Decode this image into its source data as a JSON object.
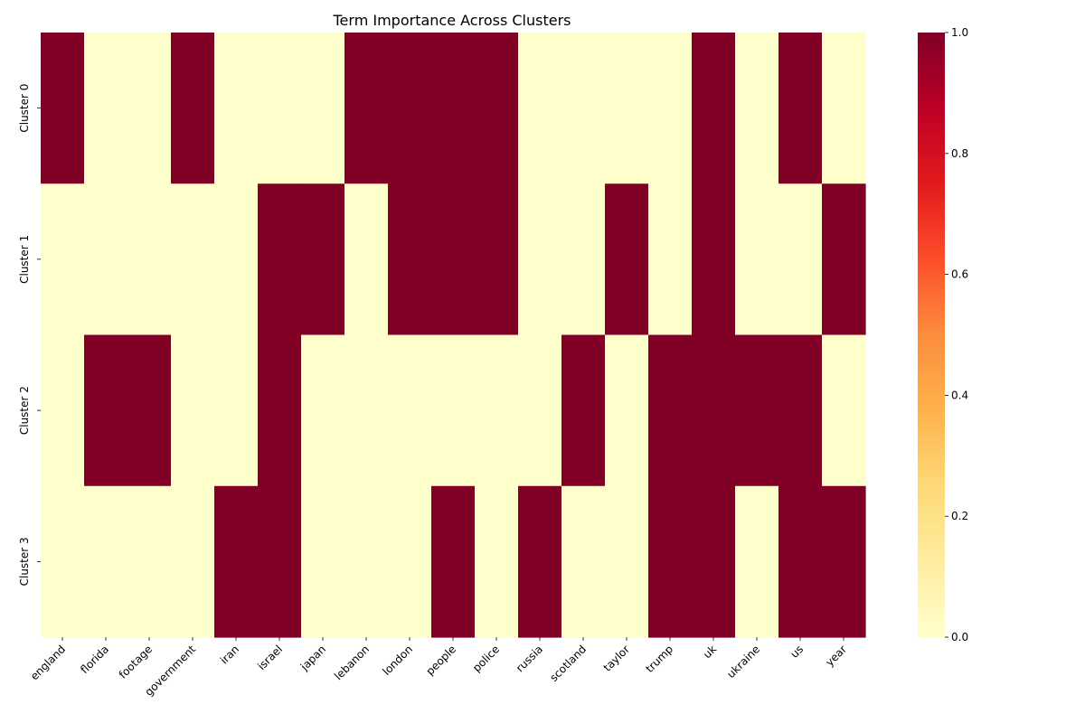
{
  "chart_data": {
    "type": "heatmap",
    "title": "Term Importance Across Clusters",
    "xlabel": "",
    "ylabel": "",
    "x_categories": [
      "england",
      "florida",
      "footage",
      "government",
      "iran",
      "israel",
      "japan",
      "lebanon",
      "london",
      "people",
      "police",
      "russia",
      "scotland",
      "taylor",
      "trump",
      "uk",
      "ukraine",
      "us",
      "year"
    ],
    "y_categories": [
      "Cluster 0",
      "Cluster 1",
      "Cluster 2",
      "Cluster 3"
    ],
    "values": [
      [
        1,
        0,
        0,
        1,
        0,
        0,
        0,
        1,
        1,
        1,
        1,
        0,
        0,
        0,
        0,
        1,
        0,
        1,
        0
      ],
      [
        0,
        0,
        0,
        0,
        0,
        1,
        1,
        0,
        1,
        1,
        1,
        0,
        0,
        1,
        0,
        1,
        0,
        0,
        1
      ],
      [
        0,
        1,
        1,
        0,
        0,
        1,
        0,
        0,
        0,
        0,
        0,
        0,
        1,
        0,
        1,
        1,
        1,
        1,
        0
      ],
      [
        0,
        0,
        0,
        0,
        1,
        1,
        0,
        0,
        0,
        1,
        0,
        1,
        0,
        0,
        1,
        1,
        0,
        1,
        1
      ]
    ],
    "colorbar": {
      "min": 0.0,
      "max": 1.0,
      "ticks": [
        "0.0",
        "0.2",
        "0.4",
        "0.6",
        "0.8",
        "1.0"
      ],
      "colormap": "YlOrRd",
      "stops": [
        "#ffffcc",
        "#ffeda0",
        "#fed976",
        "#feb24c",
        "#fd8d3c",
        "#fc4e2a",
        "#e31a1c",
        "#bd0026",
        "#800026"
      ]
    }
  }
}
